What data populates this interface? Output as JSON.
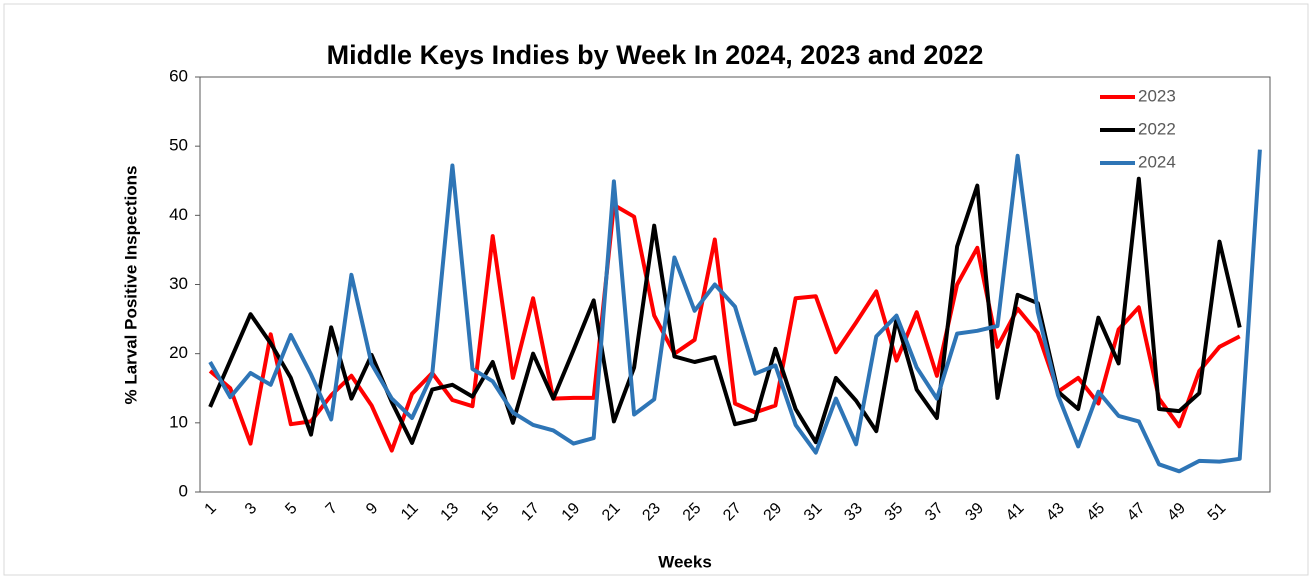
{
  "chart_data": {
    "type": "line",
    "title": "Middle Keys Indies by Week In 2024, 2023 and 2022",
    "x_label": "Weeks",
    "y_label": "% Larval Positive Inspections",
    "categories": [
      1,
      null,
      3,
      null,
      5,
      null,
      7,
      null,
      9,
      null,
      11,
      null,
      13,
      null,
      15,
      null,
      17,
      null,
      19,
      null,
      21,
      null,
      23,
      null,
      25,
      null,
      27,
      null,
      29,
      null,
      31,
      null,
      33,
      null,
      35,
      null,
      37,
      null,
      39,
      null,
      41,
      null,
      43,
      null,
      45,
      null,
      47,
      null,
      49,
      null,
      51,
      null,
      null
    ],
    "ylim": [
      0,
      60
    ],
    "yticks": [
      0,
      10,
      20,
      30,
      40,
      50,
      60
    ],
    "grid": false,
    "legend": "top-right",
    "series": [
      {
        "name": "2023",
        "color": "#ff0000",
        "values": [
          17.5,
          15,
          7,
          22.8,
          9.8,
          10.2,
          14,
          16.8,
          12.5,
          6,
          14.2,
          17.2,
          13.3,
          12.4,
          37,
          16.5,
          28,
          13.5,
          13.6,
          13.6,
          41.5,
          39.8,
          25.5,
          20,
          22,
          36.5,
          12.8,
          11.5,
          12.5,
          28,
          28.3,
          20.2,
          24.5,
          29,
          19,
          26,
          16.8,
          30,
          35.3,
          21,
          26.5,
          23,
          14.5,
          16.5,
          12.8,
          23.5,
          26.7,
          13.5,
          9.5,
          17.5,
          21,
          22.5,
          null
        ]
      },
      {
        "name": "2022",
        "color": "#000000",
        "values": [
          12.3,
          19,
          25.7,
          21.5,
          16.5,
          8.3,
          23.8,
          13.5,
          19.8,
          13,
          7.1,
          14.8,
          15.5,
          13.8,
          18.8,
          10,
          20,
          13.5,
          20.5,
          27.7,
          10.2,
          18,
          38.5,
          19.6,
          18.8,
          19.5,
          9.8,
          10.5,
          20.7,
          12,
          7.2,
          16.5,
          13.2,
          8.8,
          25,
          14.8,
          10.7,
          35.5,
          44.3,
          13.6,
          28.5,
          27.3,
          14.5,
          12,
          25.2,
          18.6,
          45.3,
          12,
          11.7,
          14.3,
          36.2,
          23.8,
          null
        ]
      },
      {
        "name": "2024",
        "color": "#2e75b6",
        "values": [
          18.8,
          13.7,
          17.2,
          15.5,
          22.7,
          17,
          10.5,
          31.4,
          18.5,
          13.5,
          10.7,
          17,
          47.2,
          17.8,
          16,
          11.5,
          9.7,
          8.9,
          7,
          7.8,
          44.9,
          11.2,
          13.4,
          33.9,
          26.2,
          30,
          26.8,
          17.1,
          18.3,
          9.7,
          5.7,
          13.5,
          6.9,
          22.5,
          25.5,
          18,
          13.5,
          22.9,
          23.3,
          24,
          48.6,
          26,
          14,
          6.6,
          14.5,
          11,
          10.2,
          4,
          3,
          4.5,
          4.4,
          4.8,
          49.5
        ]
      }
    ]
  }
}
